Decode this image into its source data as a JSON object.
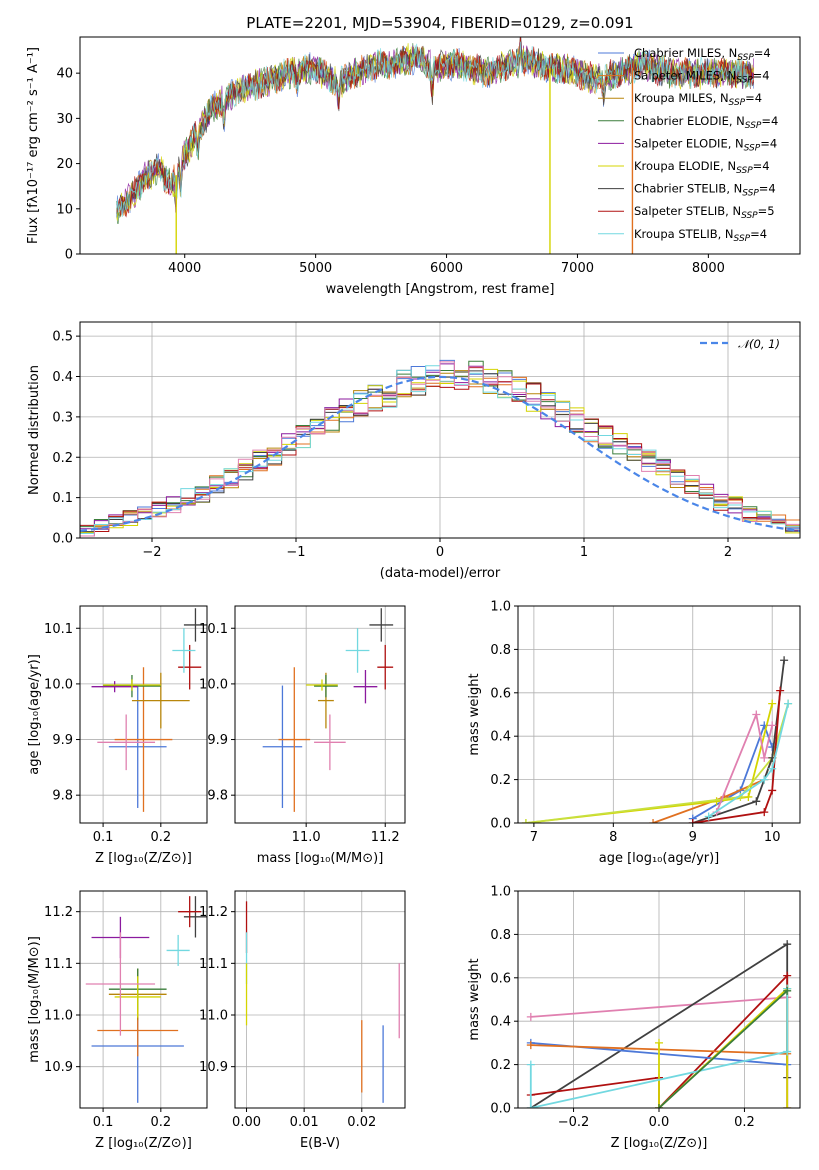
{
  "colors": {
    "c0": "#4c78d8",
    "c1": "#e07020",
    "c2": "#b8860b",
    "c3": "#3a7d3a",
    "c4": "#8b1a9e",
    "c5": "#d4d400",
    "c6": "#404040",
    "c7": "#b01010",
    "c8": "#72d8e0",
    "c9": "#e080b0",
    "c10": "#c8e040",
    "normal": "#4a86e8"
  },
  "chart_data": [
    {
      "id": "spectrum",
      "type": "line",
      "title": "PLATE=2201, MJD=53904, FIBERID=0129, z=0.091",
      "xlabel": "wavelength [Angstrom, rest frame]",
      "ylabel": "Flux [fλ10⁻¹⁷ erg cm⁻² s⁻¹ A⁻¹]",
      "xlim": [
        3200,
        8700
      ],
      "ylim": [
        0,
        48
      ],
      "xticks": [
        "4000",
        "5000",
        "6000",
        "7000",
        "8000"
      ],
      "yticks": [
        "0",
        "10",
        "20",
        "30",
        "40"
      ],
      "legend_position": "upper-right",
      "x": [
        3500,
        3600,
        3700,
        3800,
        3900,
        4000,
        4100,
        4200,
        4300,
        4400,
        4500,
        4600,
        4700,
        4800,
        4900,
        5000,
        5100,
        5200,
        5300,
        5400,
        5500,
        5600,
        5700,
        5800,
        5900,
        6000,
        6100,
        6200,
        6300,
        6400,
        6500,
        6600,
        6700,
        6800,
        6900,
        7000,
        7100,
        7200,
        7300,
        7400,
        7500,
        7600,
        7700,
        7800,
        7900,
        8000,
        8100,
        8200,
        8300
      ],
      "y": [
        10,
        13,
        17,
        19,
        15,
        22,
        27,
        32,
        34,
        36,
        37,
        38,
        39,
        40,
        41,
        41,
        39,
        38,
        40,
        41,
        42,
        42,
        43,
        43,
        41,
        42,
        42,
        41,
        40,
        41,
        42,
        43,
        42,
        41,
        41,
        40,
        39,
        39,
        40,
        41,
        42,
        41,
        40,
        40,
        40,
        40,
        40,
        40,
        40
      ],
      "series": [
        {
          "name": "Chabrier MILES, N",
          "sub": "SSP",
          "tail": "=4",
          "color": "c0"
        },
        {
          "name": "Salpeter MILES, N",
          "sub": "SSP",
          "tail": "=4",
          "color": "c1"
        },
        {
          "name": "Kroupa MILES, N",
          "sub": "SSP",
          "tail": "=4",
          "color": "c2"
        },
        {
          "name": "Chabrier ELODIE, N",
          "sub": "SSP",
          "tail": "=4",
          "color": "c3"
        },
        {
          "name": "Salpeter ELODIE, N",
          "sub": "SSP",
          "tail": "=4",
          "color": "c4"
        },
        {
          "name": "Kroupa ELODIE, N",
          "sub": "SSP",
          "tail": "=4",
          "color": "c5"
        },
        {
          "name": "Chabrier STELIB, N",
          "sub": "SSP",
          "tail": "=4",
          "color": "c6"
        },
        {
          "name": "Salpeter STELIB, N",
          "sub": "SSP",
          "tail": "=5",
          "color": "c7"
        },
        {
          "name": "Kroupa STELIB, N",
          "sub": "SSP",
          "tail": "=4",
          "color": "c8"
        }
      ],
      "spikes": [
        {
          "x": 3935,
          "color": "c5",
          "to": 0
        },
        {
          "x": 6790,
          "color": "c5",
          "to": 0
        },
        {
          "x": 7420,
          "color": "c1",
          "to": 0
        }
      ]
    },
    {
      "id": "residuals",
      "type": "histogram",
      "xlabel": "(data-model)/error",
      "ylabel": "Normed distribution",
      "xlim": [
        -2.5,
        2.5
      ],
      "ylim": [
        0,
        0.535
      ],
      "xticks": [
        "−2",
        "−1",
        "0",
        "1",
        "2"
      ],
      "yticks": [
        "0.0",
        "0.1",
        "0.2",
        "0.3",
        "0.4",
        "0.5"
      ],
      "bin_width": 0.1,
      "bin_start": -2.5,
      "legend": "𝒩(0, 1)",
      "values": [
        0.02,
        0.03,
        0.04,
        0.05,
        0.06,
        0.07,
        0.08,
        0.1,
        0.11,
        0.13,
        0.15,
        0.17,
        0.19,
        0.21,
        0.23,
        0.25,
        0.27,
        0.29,
        0.31,
        0.33,
        0.35,
        0.36,
        0.38,
        0.39,
        0.4,
        0.41,
        0.4,
        0.4,
        0.39,
        0.38,
        0.37,
        0.35,
        0.33,
        0.31,
        0.29,
        0.27,
        0.25,
        0.23,
        0.21,
        0.19,
        0.17,
        0.15,
        0.13,
        0.11,
        0.09,
        0.08,
        0.06,
        0.05,
        0.04,
        0.03
      ]
    },
    {
      "id": "age_vs_Z",
      "type": "scatter",
      "xlabel": "Z [log₁₀(Z/Z⊙)]",
      "ylabel": "age  [log₁₀(age/yr)]",
      "xlim": [
        0.06,
        0.28
      ],
      "ylim": [
        9.75,
        10.14
      ],
      "xticks": [
        "0.1",
        "0.2"
      ],
      "yticks": [
        "9.8",
        "9.9",
        "10.0",
        "10.1"
      ],
      "points": [
        {
          "x": 0.16,
          "y": 9.887,
          "xerr": 0.05,
          "yerr": 0.11,
          "color": "c0"
        },
        {
          "x": 0.17,
          "y": 9.9,
          "xerr": 0.05,
          "yerr": 0.13,
          "color": "c1"
        },
        {
          "x": 0.2,
          "y": 9.97,
          "xerr": 0.05,
          "yerr": 0.05,
          "color": "c2"
        },
        {
          "x": 0.15,
          "y": 9.996,
          "xerr": 0.05,
          "yerr": 0.02,
          "color": "c3"
        },
        {
          "x": 0.12,
          "y": 9.995,
          "xerr": 0.04,
          "yerr": 0.01,
          "color": "c4"
        },
        {
          "x": 0.15,
          "y": 9.998,
          "xerr": 0.05,
          "yerr": 0.01,
          "color": "c5"
        },
        {
          "x": 0.26,
          "y": 10.106,
          "xerr": 0.02,
          "yerr": 0.03,
          "color": "c6"
        },
        {
          "x": 0.25,
          "y": 10.03,
          "xerr": 0.02,
          "yerr": 0.04,
          "color": "c7"
        },
        {
          "x": 0.24,
          "y": 10.06,
          "xerr": 0.02,
          "yerr": 0.04,
          "color": "c8"
        },
        {
          "x": 0.14,
          "y": 9.895,
          "xerr": 0.05,
          "yerr": 0.05,
          "color": "c9"
        }
      ]
    },
    {
      "id": "age_vs_mass",
      "type": "scatter",
      "xlabel": "mass [log₁₀(M/M⊙)]",
      "ylabel": "",
      "xlim": [
        10.82,
        11.25
      ],
      "ylim": [
        9.75,
        10.14
      ],
      "xticks": [
        "11.0",
        "11.2"
      ],
      "yticks": [
        "9.8",
        "9.9",
        "10.0",
        "10.1"
      ],
      "points": [
        {
          "x": 10.94,
          "y": 9.887,
          "xerr": 0.05,
          "yerr": 0.11,
          "color": "c0"
        },
        {
          "x": 10.97,
          "y": 9.9,
          "xerr": 0.04,
          "yerr": 0.13,
          "color": "c1"
        },
        {
          "x": 11.05,
          "y": 9.97,
          "xerr": 0.02,
          "yerr": 0.05,
          "color": "c2"
        },
        {
          "x": 11.05,
          "y": 9.996,
          "xerr": 0.03,
          "yerr": 0.02,
          "color": "c3"
        },
        {
          "x": 11.15,
          "y": 9.995,
          "xerr": 0.03,
          "yerr": 0.03,
          "color": "c4"
        },
        {
          "x": 11.04,
          "y": 9.998,
          "xerr": 0.04,
          "yerr": 0.01,
          "color": "c5"
        },
        {
          "x": 11.19,
          "y": 10.106,
          "xerr": 0.03,
          "yerr": 0.03,
          "color": "c6"
        },
        {
          "x": 11.2,
          "y": 10.03,
          "xerr": 0.02,
          "yerr": 0.04,
          "color": "c7"
        },
        {
          "x": 11.13,
          "y": 10.06,
          "xerr": 0.03,
          "yerr": 0.04,
          "color": "c8"
        },
        {
          "x": 11.06,
          "y": 9.895,
          "xerr": 0.04,
          "yerr": 0.05,
          "color": "c9"
        }
      ]
    },
    {
      "id": "weight_vs_age",
      "type": "line",
      "xlabel": "age  [log₁₀(age/yr)]",
      "ylabel": "mass weight",
      "xlim": [
        6.8,
        10.35
      ],
      "ylim": [
        0,
        1
      ],
      "xticks": [
        "7",
        "8",
        "9",
        "10"
      ],
      "yticks": [
        "0.0",
        "0.2",
        "0.4",
        "0.6",
        "0.8",
        "1.0"
      ],
      "series": [
        {
          "color": "c0",
          "x": [
            9.0,
            9.6,
            9.9,
            10.0
          ],
          "y": [
            0.02,
            0.15,
            0.45,
            0.35
          ]
        },
        {
          "color": "c1",
          "x": [
            8.5,
            9.4,
            9.9,
            10.0
          ],
          "y": [
            0.0,
            0.12,
            0.2,
            0.3
          ]
        },
        {
          "color": "c5",
          "x": [
            6.9,
            9.3,
            9.7,
            10.0
          ],
          "y": [
            0.0,
            0.1,
            0.12,
            0.55
          ]
        },
        {
          "color": "c10",
          "x": [
            6.9,
            9.6,
            10.0,
            10.2
          ],
          "y": [
            0.0,
            0.12,
            0.3,
            0.55
          ]
        },
        {
          "color": "c6",
          "x": [
            9.0,
            9.8,
            10.0,
            10.15
          ],
          "y": [
            0.0,
            0.1,
            0.3,
            0.75
          ]
        },
        {
          "color": "c7",
          "x": [
            9.0,
            9.9,
            10.0,
            10.1
          ],
          "y": [
            0.0,
            0.05,
            0.15,
            0.61
          ]
        },
        {
          "color": "c9",
          "x": [
            9.3,
            9.8,
            9.9,
            10.0
          ],
          "y": [
            0.05,
            0.5,
            0.3,
            0.45
          ]
        },
        {
          "color": "c8",
          "x": [
            9.2,
            9.9,
            10.0,
            10.2
          ],
          "y": [
            0.03,
            0.2,
            0.25,
            0.55
          ]
        }
      ]
    },
    {
      "id": "mass_vs_Z",
      "type": "scatter",
      "xlabel": "Z [log₁₀(Z/Z⊙)]",
      "ylabel": "mass [log₁₀(M/M⊙)]",
      "xlim": [
        0.06,
        0.28
      ],
      "ylim": [
        10.82,
        11.24
      ],
      "xticks": [
        "0.1",
        "0.2"
      ],
      "yticks": [
        "10.9",
        "11.0",
        "11.1",
        "11.2"
      ],
      "points": [
        {
          "x": 0.16,
          "y": 10.94,
          "xerr": 0.08,
          "yerr": 0.11,
          "color": "c0"
        },
        {
          "x": 0.16,
          "y": 10.97,
          "xerr": 0.07,
          "yerr": 0.05,
          "color": "c1"
        },
        {
          "x": 0.16,
          "y": 11.04,
          "xerr": 0.05,
          "yerr": 0.05,
          "color": "c2"
        },
        {
          "x": 0.16,
          "y": 11.05,
          "xerr": 0.05,
          "yerr": 0.04,
          "color": "c3"
        },
        {
          "x": 0.13,
          "y": 11.15,
          "xerr": 0.05,
          "yerr": 0.04,
          "color": "c4"
        },
        {
          "x": 0.16,
          "y": 11.035,
          "xerr": 0.04,
          "yerr": 0.04,
          "color": "c5"
        },
        {
          "x": 0.26,
          "y": 11.19,
          "xerr": 0.02,
          "yerr": 0.04,
          "color": "c6"
        },
        {
          "x": 0.25,
          "y": 11.2,
          "xerr": 0.02,
          "yerr": 0.03,
          "color": "c7"
        },
        {
          "x": 0.23,
          "y": 11.125,
          "xerr": 0.02,
          "yerr": 0.03,
          "color": "c8"
        },
        {
          "x": 0.13,
          "y": 11.06,
          "xerr": 0.06,
          "yerr": 0.1,
          "color": "c9"
        }
      ]
    },
    {
      "id": "mass_vs_EBV",
      "type": "scatter",
      "xlabel": "E(B-V)",
      "ylabel": "",
      "xlim": [
        -0.002,
        0.0275
      ],
      "ylim": [
        10.82,
        11.24
      ],
      "xticks": [
        "0.00",
        "0.01",
        "0.02"
      ],
      "yticks": [
        "10.9",
        "11.0",
        "11.1",
        "11.2"
      ],
      "vbars": [
        {
          "x": 0.0,
          "y0": 11.12,
          "y1": 11.22,
          "color": "c7"
        },
        {
          "x": 0.0,
          "y0": 11.06,
          "y1": 11.16,
          "color": "c8"
        },
        {
          "x": 0.0,
          "y0": 10.98,
          "y1": 11.1,
          "color": "c5"
        },
        {
          "x": 0.02,
          "y0": 10.85,
          "y1": 10.99,
          "color": "c1"
        },
        {
          "x": 0.0237,
          "y0": 10.83,
          "y1": 10.98,
          "color": "c0"
        },
        {
          "x": 0.0265,
          "y0": 10.955,
          "y1": 11.1,
          "color": "c9"
        }
      ]
    },
    {
      "id": "weight_vs_Z",
      "type": "line",
      "xlabel": "Z [log₁₀(Z/Z⊙)]",
      "ylabel": "mass weight",
      "xlim": [
        -0.33,
        0.33
      ],
      "ylim": [
        0,
        1
      ],
      "xticks": [
        "−0.2",
        "0.0",
        "0.2"
      ],
      "yticks": [
        "0.0",
        "0.2",
        "0.4",
        "0.6",
        "0.8",
        "1.0"
      ],
      "series": [
        {
          "color": "c9",
          "x": [
            -0.3,
            0.3
          ],
          "y": [
            0.42,
            0.51
          ]
        },
        {
          "color": "c6",
          "x": [
            -0.3,
            0.3,
            0.3
          ],
          "y": [
            0.0,
            0.755,
            0.14
          ]
        },
        {
          "color": "c7",
          "x": [
            -0.3,
            0.0,
            0.0,
            0.3,
            0.3
          ],
          "y": [
            0.06,
            0.14,
            0.0,
            0.61,
            0.0
          ]
        },
        {
          "color": "c0",
          "x": [
            -0.3,
            0.3
          ],
          "y": [
            0.3,
            0.2
          ]
        },
        {
          "color": "c1",
          "x": [
            -0.3,
            0.3
          ],
          "y": [
            0.29,
            0.25
          ]
        },
        {
          "color": "c5",
          "x": [
            0.0,
            0.0,
            0.3,
            0.3
          ],
          "y": [
            0.3,
            0.0,
            0.55,
            0.0
          ]
        },
        {
          "color": "c8",
          "x": [
            -0.3,
            -0.3,
            0.3,
            0.3
          ],
          "y": [
            0.2,
            0.0,
            0.26,
            0.55
          ]
        },
        {
          "color": "c3",
          "x": [
            0.0,
            0.3
          ],
          "y": [
            0.0,
            0.54
          ]
        }
      ]
    }
  ]
}
